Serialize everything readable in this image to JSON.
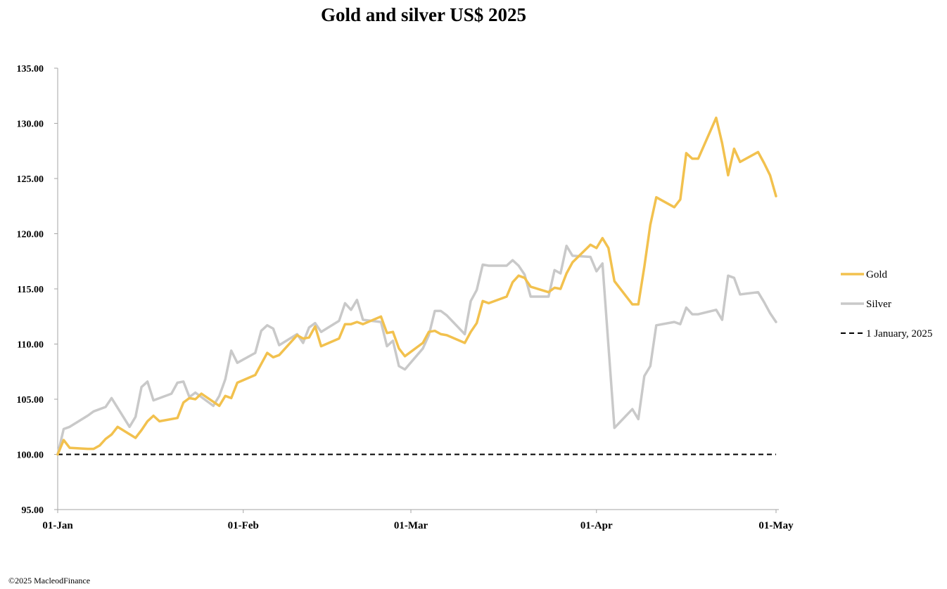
{
  "footer": {
    "credit": "©2025 MacleodFinance"
  },
  "chart_data": {
    "type": "line",
    "title": "Gold and silver  US$ 2025",
    "xlabel": "",
    "ylabel": "",
    "ylim": [
      95,
      135
    ],
    "yticks": [
      "95.00",
      "100.00",
      "105.00",
      "110.00",
      "115.00",
      "120.00",
      "125.00",
      "130.00",
      "135.00"
    ],
    "xlim": [
      "2025-01-01",
      "2025-05-01"
    ],
    "xticks": [
      {
        "date": "2025-01-01",
        "label": "01-Jan"
      },
      {
        "date": "2025-02-01",
        "label": "01-Feb"
      },
      {
        "date": "2025-03-01",
        "label": "01-Mar"
      },
      {
        "date": "2025-04-01",
        "label": "01-Apr"
      },
      {
        "date": "2025-05-01",
        "label": "01-May"
      }
    ],
    "grid": false,
    "legend": "right",
    "series": [
      {
        "name": "Gold",
        "color": "#f2c14e",
        "style": "solid",
        "points": [
          [
            "2025-01-01",
            100.0
          ],
          [
            "2025-01-02",
            101.3
          ],
          [
            "2025-01-03",
            100.6
          ],
          [
            "2025-01-06",
            100.5
          ],
          [
            "2025-01-07",
            100.5
          ],
          [
            "2025-01-08",
            100.8
          ],
          [
            "2025-01-09",
            101.4
          ],
          [
            "2025-01-10",
            101.8
          ],
          [
            "2025-01-11",
            102.5
          ],
          [
            "2025-01-14",
            101.5
          ],
          [
            "2025-01-15",
            102.2
          ],
          [
            "2025-01-16",
            103.0
          ],
          [
            "2025-01-17",
            103.5
          ],
          [
            "2025-01-18",
            103.0
          ],
          [
            "2025-01-21",
            103.3
          ],
          [
            "2025-01-22",
            104.7
          ],
          [
            "2025-01-23",
            105.1
          ],
          [
            "2025-01-24",
            105.0
          ],
          [
            "2025-01-25",
            105.5
          ],
          [
            "2025-01-28",
            104.4
          ],
          [
            "2025-01-29",
            105.3
          ],
          [
            "2025-01-30",
            105.1
          ],
          [
            "2025-01-31",
            106.5
          ],
          [
            "2025-02-03",
            107.2
          ],
          [
            "2025-02-04",
            108.2
          ],
          [
            "2025-02-05",
            109.2
          ],
          [
            "2025-02-06",
            108.8
          ],
          [
            "2025-02-07",
            109.0
          ],
          [
            "2025-02-10",
            110.8
          ],
          [
            "2025-02-11",
            110.5
          ],
          [
            "2025-02-12",
            110.6
          ],
          [
            "2025-02-13",
            111.6
          ],
          [
            "2025-02-14",
            109.8
          ],
          [
            "2025-02-17",
            110.5
          ],
          [
            "2025-02-18",
            111.8
          ],
          [
            "2025-02-19",
            111.8
          ],
          [
            "2025-02-20",
            112.0
          ],
          [
            "2025-02-21",
            111.8
          ],
          [
            "2025-02-24",
            112.5
          ],
          [
            "2025-02-25",
            111.0
          ],
          [
            "2025-02-26",
            111.1
          ],
          [
            "2025-02-27",
            109.6
          ],
          [
            "2025-02-28",
            108.9
          ],
          [
            "2025-03-03",
            110.1
          ],
          [
            "2025-03-04",
            111.1
          ],
          [
            "2025-03-05",
            111.2
          ],
          [
            "2025-03-06",
            110.9
          ],
          [
            "2025-03-07",
            110.8
          ],
          [
            "2025-03-10",
            110.1
          ],
          [
            "2025-03-11",
            111.1
          ],
          [
            "2025-03-12",
            111.9
          ],
          [
            "2025-03-13",
            113.9
          ],
          [
            "2025-03-14",
            113.7
          ],
          [
            "2025-03-17",
            114.3
          ],
          [
            "2025-03-18",
            115.6
          ],
          [
            "2025-03-19",
            116.2
          ],
          [
            "2025-03-20",
            116.0
          ],
          [
            "2025-03-21",
            115.2
          ],
          [
            "2025-03-24",
            114.7
          ],
          [
            "2025-03-25",
            115.1
          ],
          [
            "2025-03-26",
            115.0
          ],
          [
            "2025-03-27",
            116.4
          ],
          [
            "2025-03-28",
            117.4
          ],
          [
            "2025-03-31",
            119.0
          ],
          [
            "2025-04-01",
            118.7
          ],
          [
            "2025-04-02",
            119.6
          ],
          [
            "2025-04-03",
            118.7
          ],
          [
            "2025-04-04",
            115.7
          ],
          [
            "2025-04-07",
            113.6
          ],
          [
            "2025-04-08",
            113.6
          ],
          [
            "2025-04-09",
            117.0
          ],
          [
            "2025-04-10",
            120.8
          ],
          [
            "2025-04-11",
            123.3
          ],
          [
            "2025-04-14",
            122.4
          ],
          [
            "2025-04-15",
            123.1
          ],
          [
            "2025-04-16",
            127.3
          ],
          [
            "2025-04-17",
            126.8
          ],
          [
            "2025-04-18",
            126.8
          ],
          [
            "2025-04-21",
            130.5
          ],
          [
            "2025-04-22",
            128.2
          ],
          [
            "2025-04-23",
            125.3
          ],
          [
            "2025-04-24",
            127.7
          ],
          [
            "2025-04-25",
            126.5
          ],
          [
            "2025-04-28",
            127.4
          ],
          [
            "2025-04-29",
            126.4
          ],
          [
            "2025-04-30",
            125.3
          ],
          [
            "2025-05-01",
            123.4
          ]
        ]
      },
      {
        "name": "Silver",
        "color": "#c9c9c9",
        "style": "solid",
        "points": [
          [
            "2025-01-01",
            100.0
          ],
          [
            "2025-01-02",
            102.3
          ],
          [
            "2025-01-03",
            102.5
          ],
          [
            "2025-01-06",
            103.5
          ],
          [
            "2025-01-07",
            103.9
          ],
          [
            "2025-01-09",
            104.3
          ],
          [
            "2025-01-10",
            105.1
          ],
          [
            "2025-01-13",
            102.5
          ],
          [
            "2025-01-14",
            103.4
          ],
          [
            "2025-01-15",
            106.1
          ],
          [
            "2025-01-16",
            106.6
          ],
          [
            "2025-01-17",
            104.9
          ],
          [
            "2025-01-20",
            105.5
          ],
          [
            "2025-01-21",
            106.5
          ],
          [
            "2025-01-22",
            106.6
          ],
          [
            "2025-01-23",
            105.2
          ],
          [
            "2025-01-24",
            105.6
          ],
          [
            "2025-01-27",
            104.4
          ],
          [
            "2025-01-28",
            105.3
          ],
          [
            "2025-01-29",
            106.8
          ],
          [
            "2025-01-30",
            109.4
          ],
          [
            "2025-01-31",
            108.3
          ],
          [
            "2025-02-03",
            109.2
          ],
          [
            "2025-02-04",
            111.2
          ],
          [
            "2025-02-05",
            111.7
          ],
          [
            "2025-02-06",
            111.4
          ],
          [
            "2025-02-07",
            109.9
          ],
          [
            "2025-02-10",
            110.9
          ],
          [
            "2025-02-11",
            110.1
          ],
          [
            "2025-02-12",
            111.5
          ],
          [
            "2025-02-13",
            111.9
          ],
          [
            "2025-02-14",
            111.1
          ],
          [
            "2025-02-17",
            112.1
          ],
          [
            "2025-02-18",
            113.7
          ],
          [
            "2025-02-19",
            113.1
          ],
          [
            "2025-02-20",
            114.0
          ],
          [
            "2025-02-21",
            112.2
          ],
          [
            "2025-02-24",
            112.0
          ],
          [
            "2025-02-25",
            109.8
          ],
          [
            "2025-02-26",
            110.3
          ],
          [
            "2025-02-27",
            108.0
          ],
          [
            "2025-02-28",
            107.7
          ],
          [
            "2025-03-03",
            109.6
          ],
          [
            "2025-03-04",
            110.8
          ],
          [
            "2025-03-05",
            113.0
          ],
          [
            "2025-03-06",
            113.0
          ],
          [
            "2025-03-07",
            112.6
          ],
          [
            "2025-03-10",
            110.9
          ],
          [
            "2025-03-11",
            113.9
          ],
          [
            "2025-03-12",
            114.9
          ],
          [
            "2025-03-13",
            117.2
          ],
          [
            "2025-03-14",
            117.1
          ],
          [
            "2025-03-17",
            117.1
          ],
          [
            "2025-03-18",
            117.6
          ],
          [
            "2025-03-19",
            117.1
          ],
          [
            "2025-03-20",
            116.3
          ],
          [
            "2025-03-21",
            114.3
          ],
          [
            "2025-03-24",
            114.3
          ],
          [
            "2025-03-25",
            116.7
          ],
          [
            "2025-03-26",
            116.4
          ],
          [
            "2025-03-27",
            118.9
          ],
          [
            "2025-03-28",
            118.0
          ],
          [
            "2025-03-31",
            117.9
          ],
          [
            "2025-04-01",
            116.6
          ],
          [
            "2025-04-02",
            117.3
          ],
          [
            "2025-04-04",
            102.4
          ],
          [
            "2025-04-07",
            104.1
          ],
          [
            "2025-04-08",
            103.2
          ],
          [
            "2025-04-09",
            107.1
          ],
          [
            "2025-04-10",
            108.0
          ],
          [
            "2025-04-11",
            111.7
          ],
          [
            "2025-04-14",
            112.0
          ],
          [
            "2025-04-15",
            111.8
          ],
          [
            "2025-04-16",
            113.3
          ],
          [
            "2025-04-17",
            112.7
          ],
          [
            "2025-04-18",
            112.7
          ],
          [
            "2025-04-21",
            113.1
          ],
          [
            "2025-04-22",
            112.2
          ],
          [
            "2025-04-23",
            116.2
          ],
          [
            "2025-04-24",
            116.0
          ],
          [
            "2025-04-25",
            114.5
          ],
          [
            "2025-04-28",
            114.7
          ],
          [
            "2025-04-29",
            113.8
          ],
          [
            "2025-04-30",
            112.8
          ],
          [
            "2025-05-01",
            112.0
          ]
        ]
      },
      {
        "name": "1 January, 2025",
        "color": "#000000",
        "style": "dashed",
        "points": [
          [
            "2025-01-01",
            100.0
          ],
          [
            "2025-05-01",
            100.0
          ]
        ]
      }
    ]
  }
}
